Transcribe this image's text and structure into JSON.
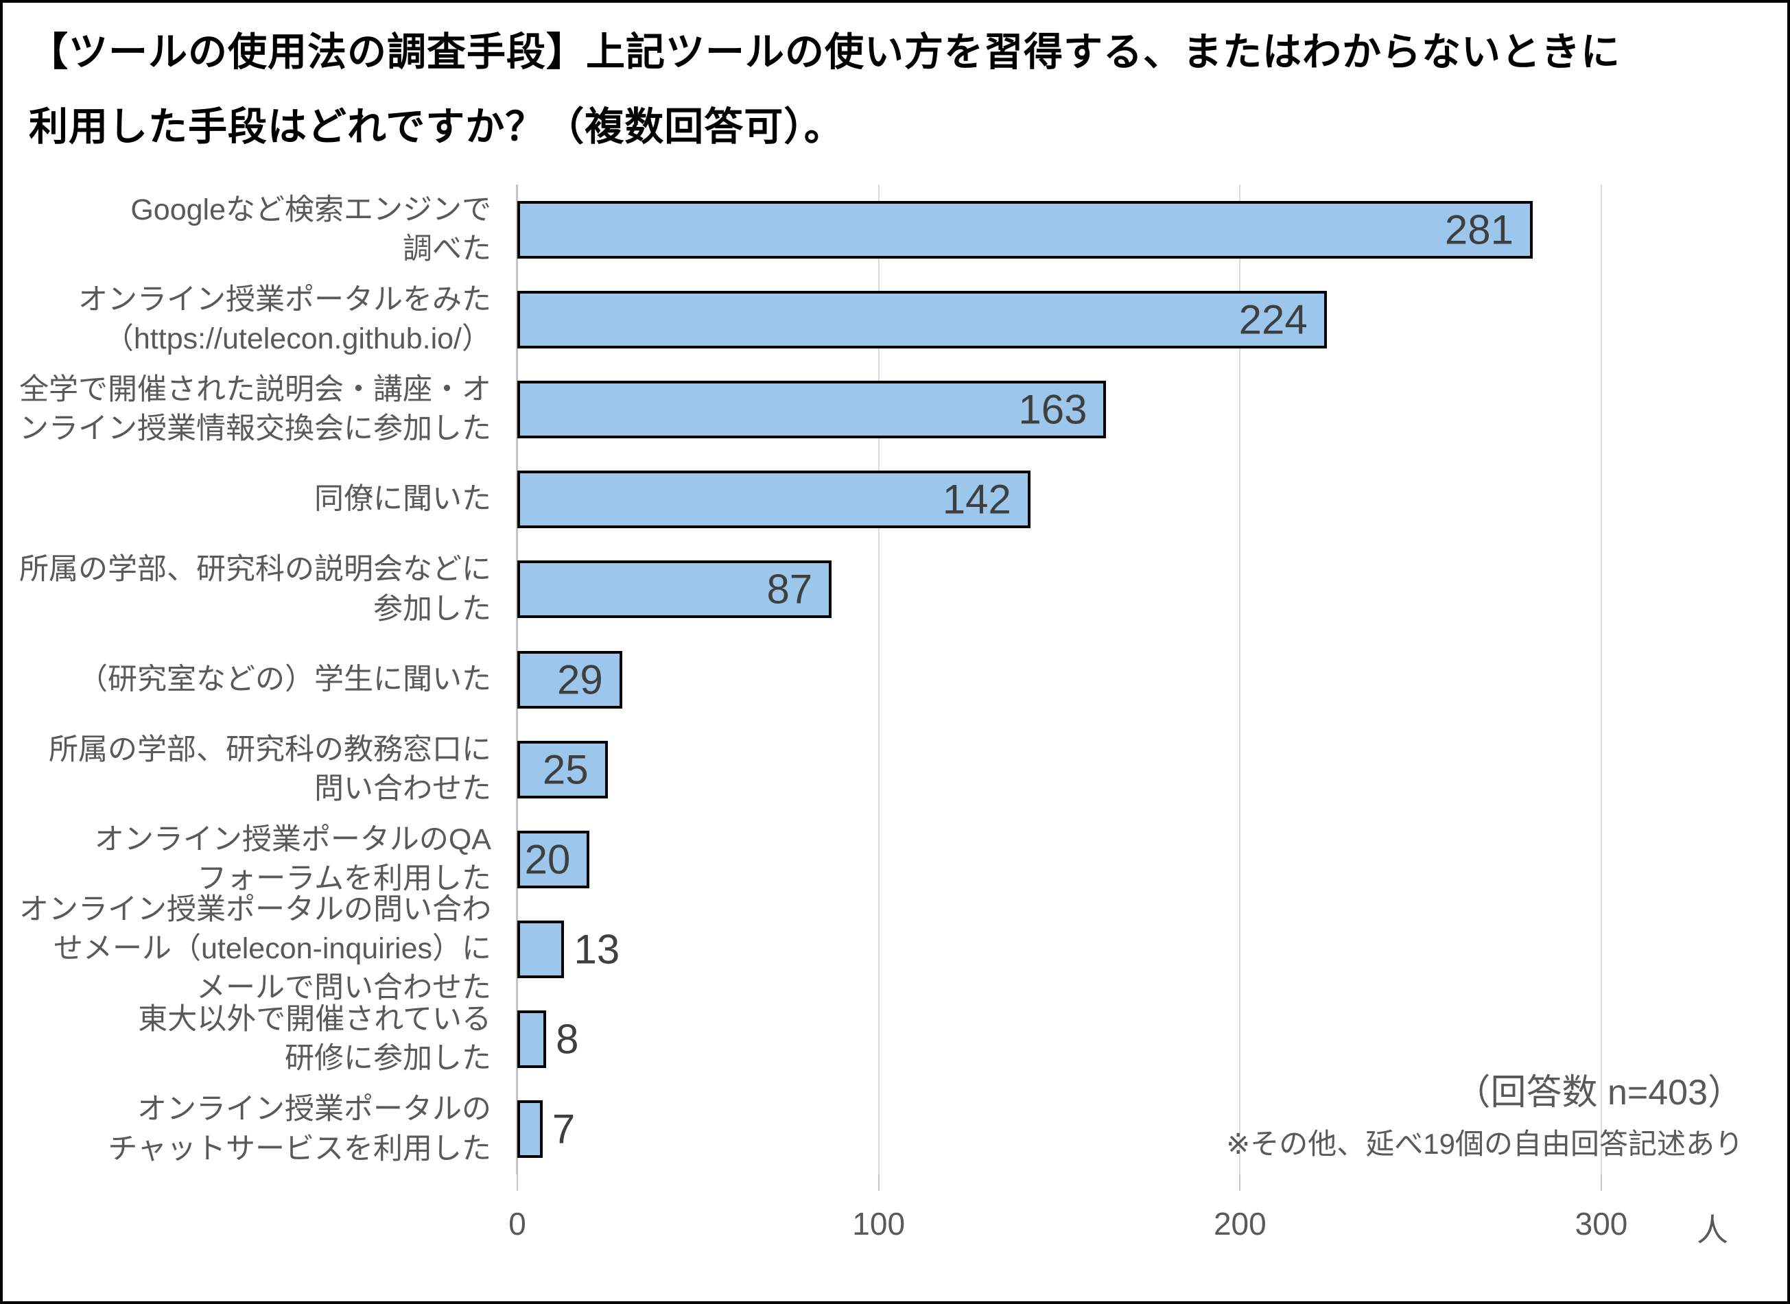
{
  "chart_data": {
    "type": "bar",
    "orientation": "horizontal",
    "title": "【ツールの使用法の調査手段】上記ツールの使い方を習得する、またはわからないときに\n利用した手段はどれですか？（複数回答可）。",
    "categories": [
      "Googleなど検索エンジンで\n調べた",
      "オンライン授業ポータルをみた\n（https://utelecon.github.io/）",
      "全学で開催された説明会・講座・オ\nンライン授業情報交換会に参加した",
      "同僚に聞いた",
      "所属の学部、研究科の説明会などに\n参加した",
      "（研究室などの）学生に聞いた",
      "所属の学部、研究科の教務窓口に\n問い合わせた",
      "オンライン授業ポータルのQA\nフォーラムを利用した",
      "オンライン授業ポータルの問い合わ\nせメール（utelecon-inquiries）に\nメールで問い合わせた",
      "東大以外で開催されている\n研修に参加した",
      "オンライン授業ポータルの\nチャットサービスを利用した"
    ],
    "values": [
      281,
      224,
      163,
      142,
      87,
      29,
      25,
      20,
      13,
      8,
      7
    ],
    "xticks": [
      0,
      100,
      200,
      300
    ],
    "xtick_labels": [
      "0",
      "100",
      "200",
      "300"
    ],
    "x_unit": "人",
    "xlim": [
      0,
      350
    ],
    "grid": true,
    "legend": "none",
    "annotations": {
      "response_count": "（回答数 n=403）",
      "free_answer_note": "※その他、延べ19個の自由回答記述あり"
    },
    "colors": {
      "bar_fill": "#9CC6EC",
      "bar_border": "#000000",
      "value_label": "#3F3F3F",
      "category_label": "#595959",
      "tick_label": "#595959",
      "gridline": "#D9D9D9",
      "axis_line": "#C4C4C4",
      "title": "#000000",
      "annotation": "#595959",
      "background": "#FFFFFF",
      "frame_border": "#000000"
    }
  }
}
